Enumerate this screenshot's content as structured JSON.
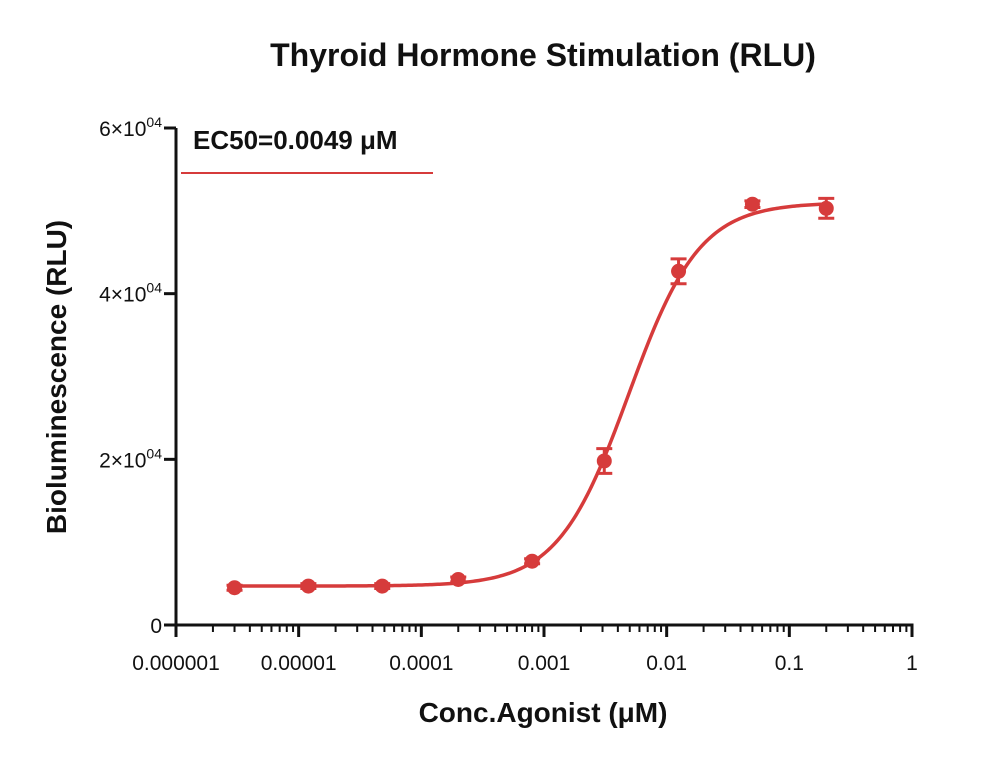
{
  "chart_data": {
    "type": "scatter",
    "title": "Thyroid Hormone Stimulation (RLU)",
    "xlabel": "Conc.Agonist (μM)",
    "ylabel": "Bioluminescence (RLU)",
    "x_scale": "log",
    "xlim": [
      1e-06,
      1
    ],
    "ylim": [
      0,
      60000
    ],
    "x_ticks": [
      1e-06,
      1e-05,
      0.0001,
      0.001,
      0.01,
      0.1,
      1
    ],
    "x_tick_labels": [
      "0.000001",
      "0.00001",
      "0.0001",
      "0.001",
      "0.01",
      "0.1",
      "1"
    ],
    "y_ticks": [
      0,
      20000,
      40000,
      60000
    ],
    "y_tick_labels": [
      {
        "value": 0,
        "mantissa": "0",
        "exponent": ""
      },
      {
        "value": 20000,
        "mantissa": "2×10",
        "exponent": "04"
      },
      {
        "value": 40000,
        "mantissa": "4×10",
        "exponent": "04"
      },
      {
        "value": 60000,
        "mantissa": "6×10",
        "exponent": "04"
      }
    ],
    "grid": false,
    "legend": {
      "position": "top-left",
      "text": "EC50=0.0049 μM",
      "color": "#d63b3b"
    },
    "series": [
      {
        "color": "#d63b3b",
        "points": [
          {
            "x": 3e-06,
            "y": 4500,
            "err": 300
          },
          {
            "x": 1.2e-05,
            "y": 4700,
            "err": 300
          },
          {
            "x": 4.8e-05,
            "y": 4700,
            "err": 300
          },
          {
            "x": 0.0002,
            "y": 5500,
            "err": 300
          },
          {
            "x": 0.0008,
            "y": 7700,
            "err": 300
          },
          {
            "x": 0.0031,
            "y": 19800,
            "err": 1500
          },
          {
            "x": 0.0125,
            "y": 42700,
            "err": 1500
          },
          {
            "x": 0.05,
            "y": 50800,
            "err": 400
          },
          {
            "x": 0.2,
            "y": 50300,
            "err": 1200
          }
        ],
        "fit": {
          "model": "4PL",
          "bottom": 4700,
          "top": 51000,
          "ec50": 0.0049,
          "hill": 1.5
        }
      }
    ]
  }
}
